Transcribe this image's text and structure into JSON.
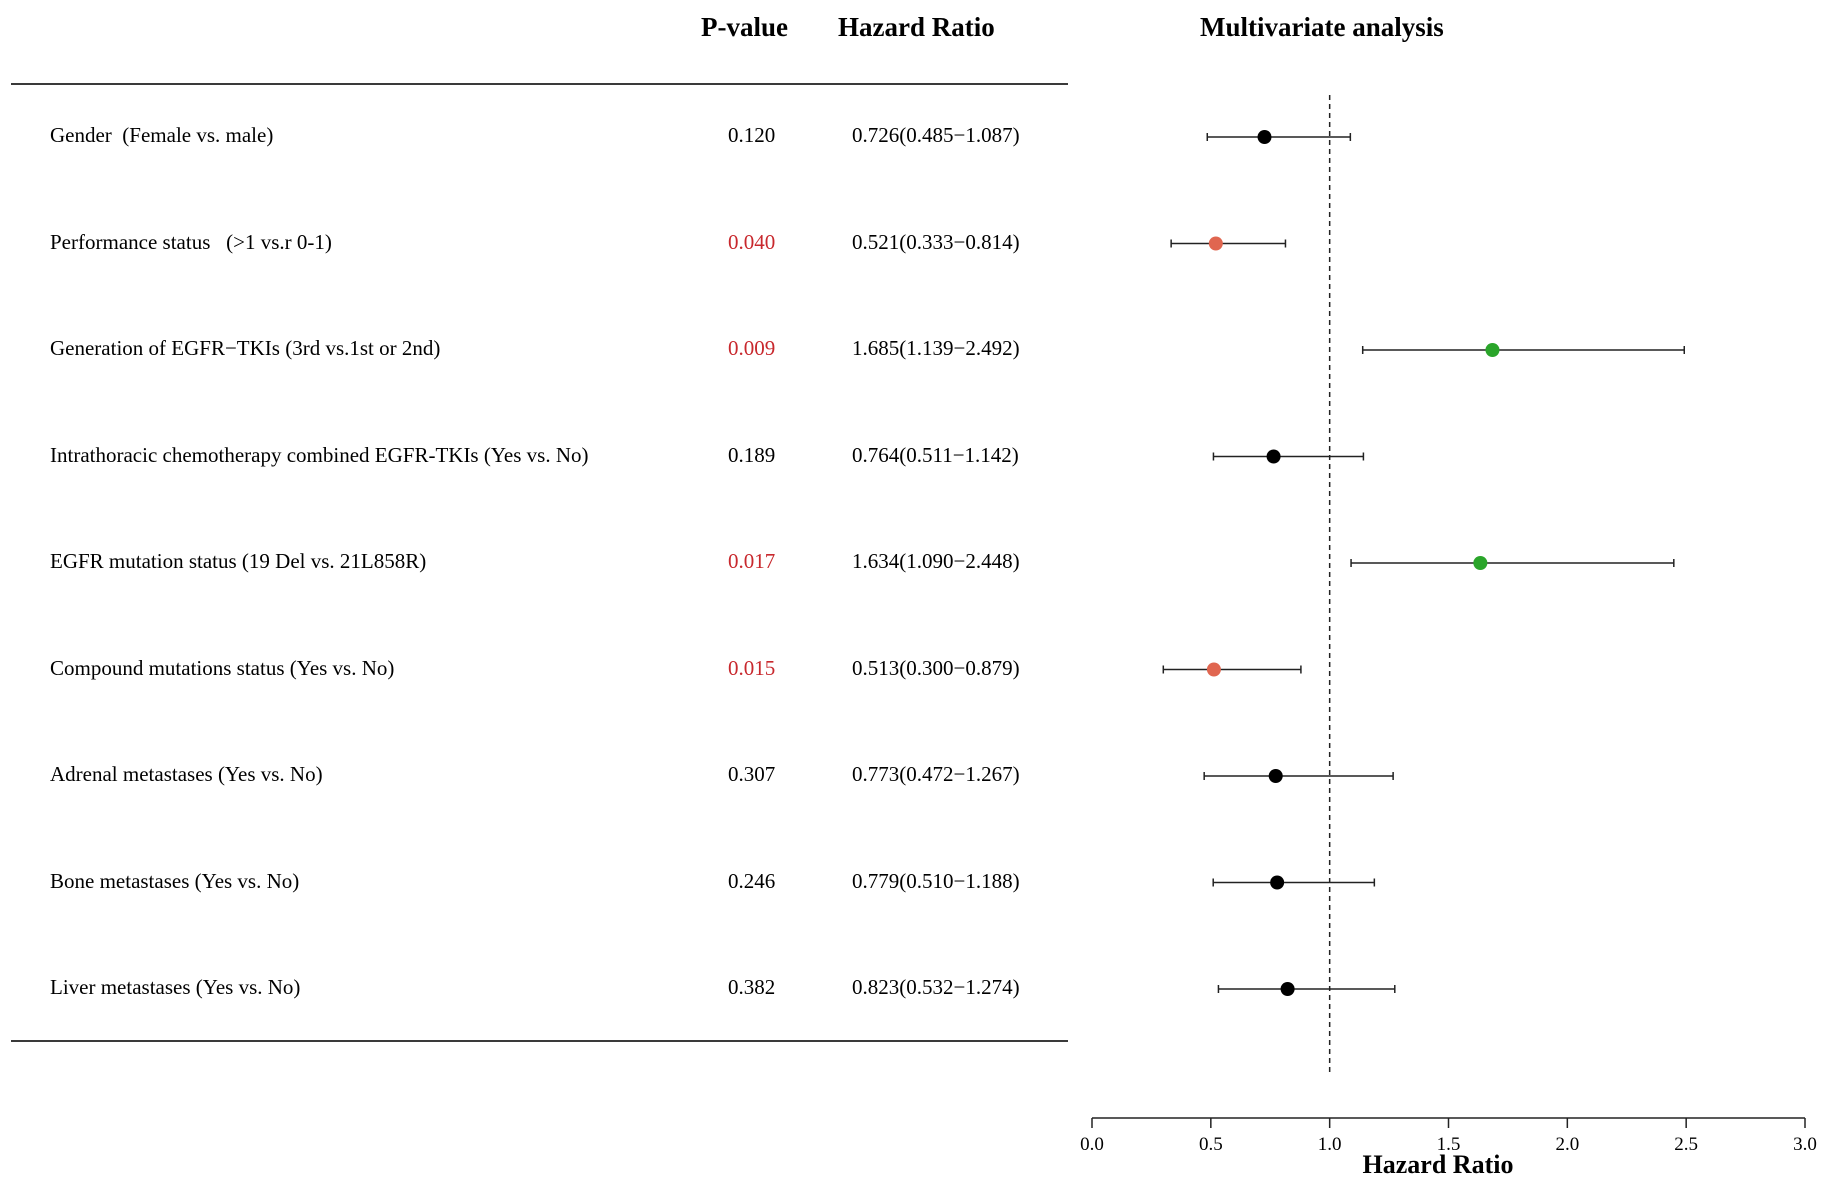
{
  "headers": {
    "pvalue": "P-value",
    "hazard_ratio": "Hazard Ratio",
    "multivariate": "Multivariate analysis"
  },
  "colors": {
    "significant_text": "#c8282d",
    "protective": "#e06650",
    "risk": "#2aa52a",
    "neutral": "#000000"
  },
  "chart_data": {
    "type": "forest",
    "title": "Multivariate analysis",
    "xlabel": "Hazard Ratio",
    "xlim": [
      0.0,
      3.0
    ],
    "xticks": [
      "0.0",
      "0.5",
      "1.0",
      "1.5",
      "2.0",
      "2.5",
      "3.0"
    ],
    "reference_line": 1.0,
    "rows": [
      {
        "label": "Gender  (Female vs. male)",
        "p": "0.120",
        "hr_text": "0.726(0.485−1.087)",
        "hr": 0.726,
        "lo": 0.485,
        "hi": 1.087,
        "sig": false,
        "color": "#000000"
      },
      {
        "label": "Performance status   (>1 vs.r 0-1)",
        "p": "0.040",
        "hr_text": "0.521(0.333−0.814)",
        "hr": 0.521,
        "lo": 0.333,
        "hi": 0.814,
        "sig": true,
        "color": "#e06650"
      },
      {
        "label": "Generation of EGFR−TKIs (3rd vs.1st or 2nd)",
        "p": "0.009",
        "hr_text": "1.685(1.139−2.492)",
        "hr": 1.685,
        "lo": 1.139,
        "hi": 2.492,
        "sig": true,
        "color": "#2aa52a"
      },
      {
        "label": "Intrathoracic chemotherapy combined EGFR-TKIs (Yes vs. No)",
        "p": "0.189",
        "hr_text": "0.764(0.511−1.142)",
        "hr": 0.764,
        "lo": 0.511,
        "hi": 1.142,
        "sig": false,
        "color": "#000000"
      },
      {
        "label": "EGFR mutation status (19 Del vs. 21L858R)",
        "p": "0.017",
        "hr_text": "1.634(1.090−2.448)",
        "hr": 1.634,
        "lo": 1.09,
        "hi": 2.448,
        "sig": true,
        "color": "#2aa52a"
      },
      {
        "label": "Compound mutations status (Yes vs. No)",
        "p": "0.015",
        "hr_text": "0.513(0.300−0.879)",
        "hr": 0.513,
        "lo": 0.3,
        "hi": 0.879,
        "sig": true,
        "color": "#e06650"
      },
      {
        "label": "Adrenal metastases (Yes vs. No)",
        "p": "0.307",
        "hr_text": "0.773(0.472−1.267)",
        "hr": 0.773,
        "lo": 0.472,
        "hi": 1.267,
        "sig": false,
        "color": "#000000"
      },
      {
        "label": "Bone metastases (Yes vs. No)",
        "p": "0.246",
        "hr_text": "0.779(0.510−1.188)",
        "hr": 0.779,
        "lo": 0.51,
        "hi": 1.188,
        "sig": false,
        "color": "#000000"
      },
      {
        "label": "Liver metastases (Yes vs. No)",
        "p": "0.382",
        "hr_text": "0.823(0.532−1.274)",
        "hr": 0.823,
        "lo": 0.532,
        "hi": 1.274,
        "sig": false,
        "color": "#000000"
      }
    ]
  }
}
